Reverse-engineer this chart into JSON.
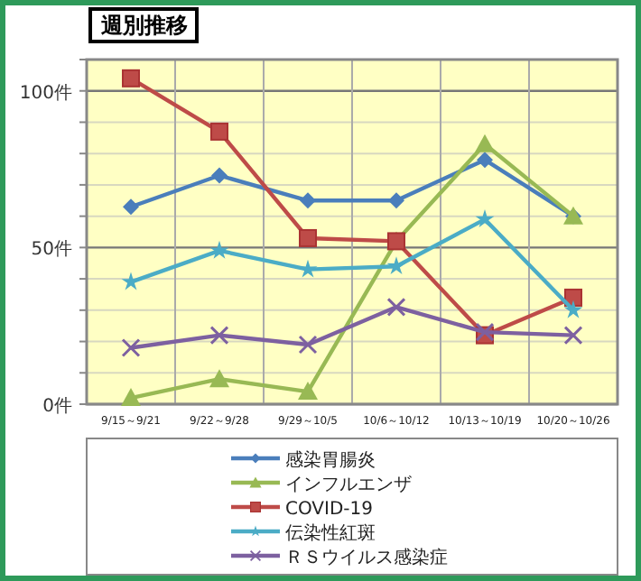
{
  "chart_data": {
    "type": "line",
    "title": "週別推移",
    "categories": [
      "9/15～9/21",
      "9/22～9/28",
      "9/29～10/5",
      "10/6～10/12",
      "10/13～10/19",
      "10/20～10/26"
    ],
    "series": [
      {
        "name": "感染胃腸炎",
        "color": "#4a7ebb",
        "marker": "diamond",
        "values": [
          63,
          73,
          65,
          65,
          78,
          60
        ]
      },
      {
        "name": "インフルエンザ",
        "color": "#98b954",
        "marker": "triangle",
        "values": [
          2,
          8,
          4,
          52,
          83,
          60
        ]
      },
      {
        "name": "COVID-19",
        "color": "#be4b48",
        "marker": "square",
        "values": [
          104,
          87,
          53,
          52,
          22,
          34
        ]
      },
      {
        "name": "伝染性紅斑",
        "color": "#4bacc6",
        "marker": "star",
        "values": [
          39,
          49,
          43,
          44,
          59,
          30
        ]
      },
      {
        "name": "ＲＳウイルス感染症",
        "color": "#7d60a0",
        "marker": "cross",
        "values": [
          18,
          22,
          19,
          31,
          23,
          22
        ]
      }
    ],
    "ylim": [
      0,
      110
    ],
    "yticks": [
      {
        "value": 0,
        "label": "0件"
      },
      {
        "value": 10,
        "label": null
      },
      {
        "value": 20,
        "label": null
      },
      {
        "value": 30,
        "label": null
      },
      {
        "value": 40,
        "label": null
      },
      {
        "value": 50,
        "label": "50件"
      },
      {
        "value": 60,
        "label": null
      },
      {
        "value": 70,
        "label": null
      },
      {
        "value": 80,
        "label": null
      },
      {
        "value": 90,
        "label": null
      },
      {
        "value": 100,
        "label": "100件"
      },
      {
        "value": 110,
        "label": null
      }
    ],
    "grid": true,
    "legend": "bottom"
  }
}
